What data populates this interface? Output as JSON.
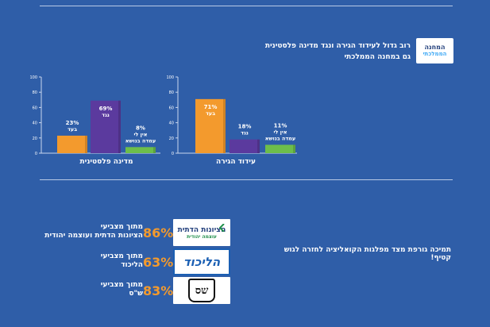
{
  "headline": {
    "line1": "רוב גדול לעידוד הגירה ונגד מדינה פלסטינית",
    "line2": "גם במחנה הממלכתי"
  },
  "logo_top": {
    "line1": "המחנה",
    "line2": "הממלכתי"
  },
  "chart_data": [
    {
      "type": "bar",
      "title": "מדינה פלסטינית",
      "categories": [
        "בעד",
        "נגד",
        "אין לי עמדה בנושא"
      ],
      "values": [
        23,
        69,
        8
      ],
      "bar_labels": [
        [
          "23%",
          "בעד"
        ],
        [
          "69%",
          "נגד"
        ],
        [
          "8%",
          "אין לי",
          "עמדה בנושא"
        ]
      ],
      "colors": [
        "#f39a2d",
        "#5b3a9e",
        "#6dbe4b"
      ],
      "ylim": [
        0,
        100
      ],
      "yticks": [
        "0",
        "20",
        "40",
        "60",
        "80",
        "100"
      ]
    },
    {
      "type": "bar",
      "title": "עידוד הגירה",
      "categories": [
        "בעד",
        "נגד",
        "אין לי עמדה בנושא"
      ],
      "values": [
        71,
        18,
        11
      ],
      "bar_labels": [
        [
          "71%",
          "בעד"
        ],
        [
          "18%",
          "נגד"
        ],
        [
          "11%",
          "אין לי",
          "עמדה בנושא"
        ]
      ],
      "colors": [
        "#f39a2d",
        "#5b3a9e",
        "#6dbe4b"
      ],
      "ylim": [
        0,
        100
      ],
      "yticks": [
        "0",
        "20",
        "40",
        "60",
        "80",
        "100"
      ]
    }
  ],
  "poll_label": "תמיכה גורפת מצד מפלגות הקואליציה לחזרה לגוש קטיף!",
  "parties": [
    {
      "percent": "86%",
      "line1": "מתוך מצביעי",
      "line2": "הציונות הדתית ועוצמה יהודית",
      "logo_text1": "הציונות הדתית",
      "logo_text2": "עוצמה יהודית"
    },
    {
      "percent": "63%",
      "line1": "מתוך מצביעי",
      "line2": "הליכוד",
      "logo_text1": "הליכוד"
    },
    {
      "percent": "83%",
      "line1": "מתוך מצביעי",
      "line2": "ש\"ס",
      "logo_text1": "שס"
    }
  ]
}
